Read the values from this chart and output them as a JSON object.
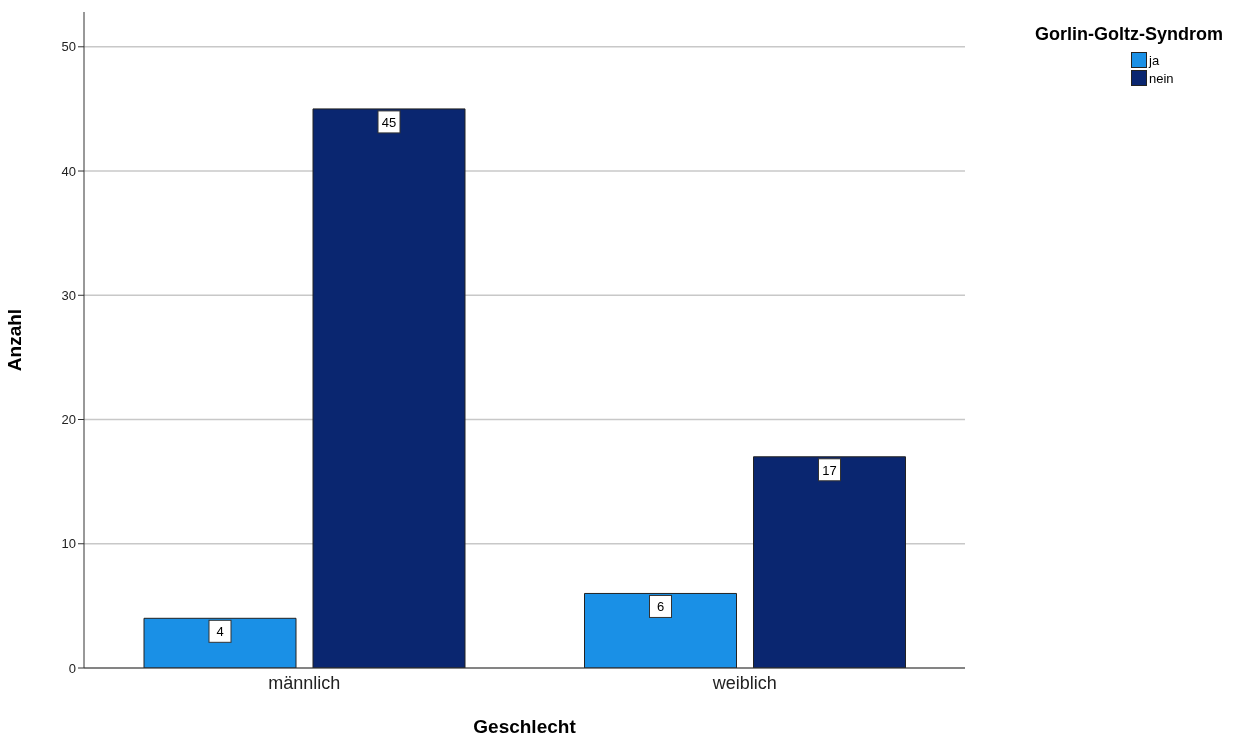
{
  "chart_data": {
    "type": "bar",
    "xlabel": "Geschlecht",
    "ylabel": "Anzahl",
    "legend_title": "Gorlin-Goltz-Syndrom",
    "categories": [
      "männlich",
      "weiblich"
    ],
    "series": [
      {
        "name": "ja",
        "color": "#1a90e6",
        "values": [
          4,
          6
        ]
      },
      {
        "name": "nein",
        "color": "#0a2670",
        "values": [
          45,
          17
        ]
      }
    ],
    "ylim": [
      0,
      52.8
    ],
    "yticks": [
      0,
      10,
      20,
      30,
      40,
      50
    ],
    "grid": "y",
    "legend": "top right",
    "data_labels": true
  }
}
